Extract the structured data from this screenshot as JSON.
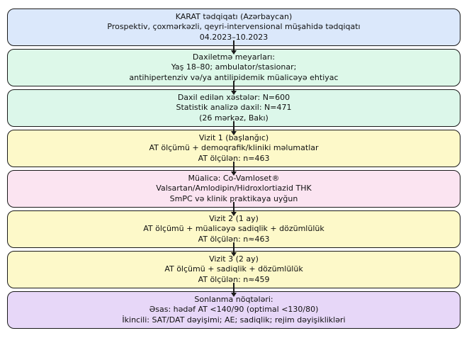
{
  "page": {
    "background_color": "#ffffff",
    "text_color": "#111111",
    "border_color": "#1a1a1a",
    "arrow_color": "#1a1a1a"
  },
  "flowchart": {
    "boxes": [
      {
        "id": "study-title",
        "color": "#dbe8fb",
        "lines": [
          "KARAT tədqiqatı (Azərbaycan)",
          "Prospektiv, çoxmərkəzli, qeyri-intervensional müşahidə tədqiqatı",
          "04.2023–10.2023"
        ]
      },
      {
        "id": "inclusion-criteria",
        "color": "#ddf8e9",
        "lines": [
          "Daxiletmə meyarları:",
          "Yaş 18–80; ambulator/stasionar;",
          "antihipertenziv və/ya antilipidemik müalicəyə ehtiyac"
        ]
      },
      {
        "id": "enrollment",
        "color": "#dcf7ea",
        "lines": [
          "Daxil edilən xəstələr: N=600",
          "Statistik analizə daxil: N=471",
          "(26 mərkəz, Bakı)"
        ]
      },
      {
        "id": "visit-1",
        "color": "#fdf9c9",
        "lines": [
          "Vizit 1 (başlanğıc)",
          "AT ölçümü + demoqrafik/kliniki məlumatlar",
          "AT ölçülən: n=463"
        ]
      },
      {
        "id": "treatment",
        "color": "#fbe4f1",
        "lines": [
          "Müalicə: Co-Vamloset®",
          "Valsartan/Amlodipin/Hidroxlortiazid THK",
          "SmPC və klinik praktikaya uyğun"
        ]
      },
      {
        "id": "visit-2",
        "color": "#fdf9c9",
        "lines": [
          "Vizit 2 (1 ay)",
          "AT ölçümü + müalicəyə sadiqlik + dözümlülük",
          "AT ölçülən: n≈463"
        ]
      },
      {
        "id": "visit-3",
        "color": "#fdf9c9",
        "lines": [
          "Vizit 3 (2 ay)",
          "AT ölçümü + sadiqlik + dözümlülük",
          "AT ölçülən: n≈459"
        ]
      },
      {
        "id": "endpoints",
        "color": "#e7d7f8",
        "lines": [
          "Sonlanma nöqtələri:",
          "Əsas: hədəf AT <140/90 (optimal <130/80)",
          "İkincili: SAT/DAT dəyişimi; AE; sadiqlik; rejim dəyişiklikləri"
        ]
      }
    ]
  }
}
